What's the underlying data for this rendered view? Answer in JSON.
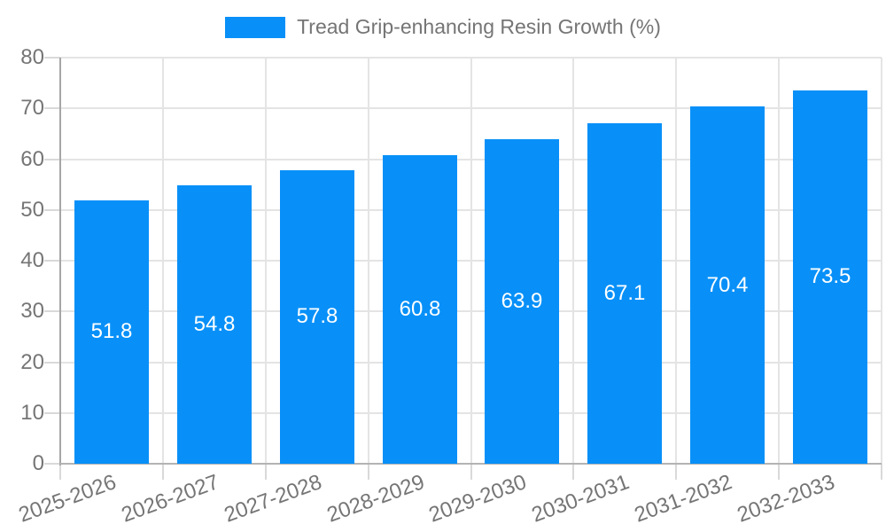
{
  "chart_data": {
    "type": "bar",
    "title": "Tread Grip-enhancing Resin Growth (%)",
    "categories": [
      "2025-2026",
      "2026-2027",
      "2027-2028",
      "2028-2029",
      "2029-2030",
      "2030-2031",
      "2031-2032",
      "2032-2033"
    ],
    "values": [
      51.8,
      54.8,
      57.8,
      60.8,
      63.9,
      67.1,
      70.4,
      73.5
    ],
    "xlabel": "",
    "ylabel": "",
    "ylim": [
      0,
      80
    ],
    "yticks": [
      0,
      10,
      20,
      30,
      40,
      50,
      60,
      70,
      80
    ],
    "grid": true,
    "legend_position": "top-center",
    "bar_color": "#0890f8",
    "bar_label_color": "#ffffff",
    "axis_text_color": "#757575",
    "grid_color": "#e4e4e4",
    "tick_color": "#d9d9d9",
    "axis_line_color": "#a6a6a6"
  }
}
